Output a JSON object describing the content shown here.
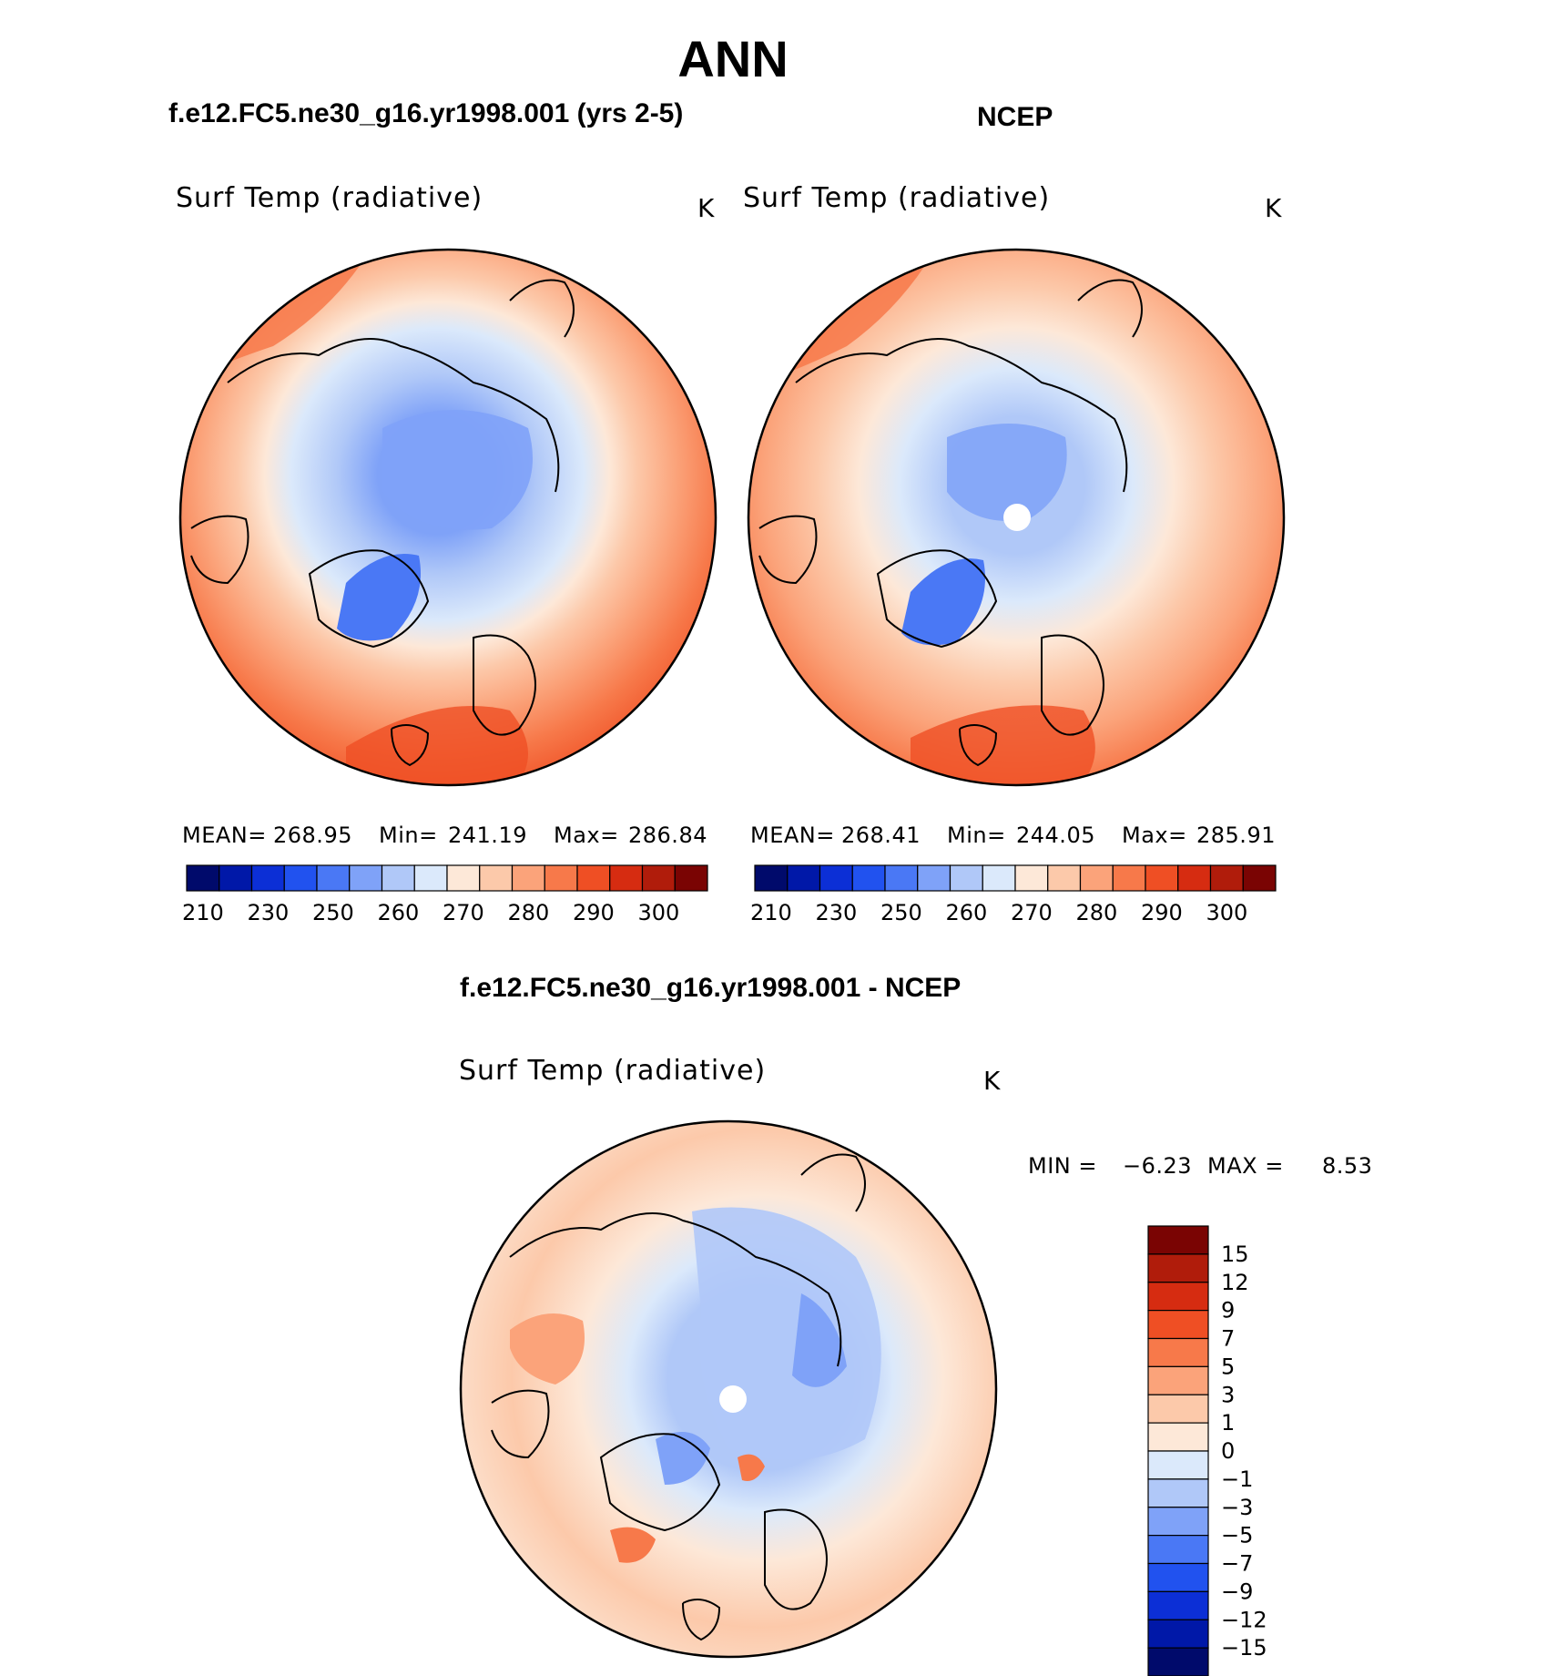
{
  "title": "ANN",
  "panels": {
    "left": {
      "case": "f.e12.FC5.ne30_g16.yr1998.001 (yrs 2-5)",
      "variable": "Surf Temp (radiative)",
      "units": "K",
      "mean_label": "MEAN=",
      "mean": "268.95",
      "min_label": "Min=",
      "min": "241.19",
      "max_label": "Max=",
      "max": "286.84"
    },
    "right": {
      "case": "NCEP",
      "variable": "Surf Temp (radiative)",
      "units": "K",
      "mean_label": "MEAN=",
      "mean": "268.41",
      "min_label": "Min=",
      "min": "244.05",
      "max_label": "Max=",
      "max": "285.91"
    },
    "diff": {
      "case": "f.e12.FC5.ne30_g16.yr1998.001 - NCEP",
      "variable": "Surf Temp (radiative)",
      "units": "K",
      "min_label": "MIN =",
      "min": "−6.23",
      "max_label": "MAX =",
      "max": "8.53"
    }
  },
  "chart_data": [
    {
      "type": "heatmap",
      "projection": "polar stereographic (north)",
      "title": "f.e12.FC5.ne30_g16.yr1998.001 (yrs 2-5)",
      "field": "Surf Temp (radiative)",
      "units": "K",
      "mean": 268.95,
      "min": 241.19,
      "max": 286.84,
      "contour_levels": [
        210,
        220,
        230,
        240,
        250,
        255,
        260,
        265,
        270,
        275,
        280,
        285,
        290,
        295,
        300
      ],
      "colorbar_labels": [
        "210",
        "230",
        "250",
        "260",
        "270",
        "280",
        "290",
        "300"
      ]
    },
    {
      "type": "heatmap",
      "projection": "polar stereographic (north)",
      "title": "NCEP",
      "field": "Surf Temp (radiative)",
      "units": "K",
      "mean": 268.41,
      "min": 244.05,
      "max": 285.91,
      "contour_levels": [
        210,
        220,
        230,
        240,
        250,
        255,
        260,
        265,
        270,
        275,
        280,
        285,
        290,
        295,
        300
      ],
      "colorbar_labels": [
        "210",
        "230",
        "250",
        "260",
        "270",
        "280",
        "290",
        "300"
      ]
    },
    {
      "type": "heatmap",
      "projection": "polar stereographic (north)",
      "title": "f.e12.FC5.ne30_g16.yr1998.001 - NCEP",
      "field": "Surf Temp (radiative)",
      "units": "K",
      "min": -6.23,
      "max": 8.53,
      "contour_levels": [
        -15,
        -12,
        -9,
        -7,
        -5,
        -3,
        -1,
        0,
        1,
        3,
        5,
        7,
        9,
        12,
        15
      ],
      "colorbar_labels": [
        "15",
        "12",
        "9",
        "7",
        "5",
        "3",
        "1",
        "0",
        "−1",
        "−3",
        "−5",
        "−7",
        "−9",
        "−12",
        "−15"
      ]
    }
  ],
  "colors": {
    "abs_colormap": [
      "#000a6b",
      "#0018a8",
      "#0c2fd6",
      "#2152ef",
      "#4a78f5",
      "#7fa2f8",
      "#b0c8f8",
      "#dbe9fb",
      "#fde8d8",
      "#fcc9aa",
      "#fba37a",
      "#f7794a",
      "#ef4f24",
      "#d62c11",
      "#b01c0b",
      "#7a0403"
    ],
    "diff_colormap": [
      "#000a6b",
      "#0018a8",
      "#0c2fd6",
      "#2152ef",
      "#4a78f5",
      "#7fa2f8",
      "#b0c8f8",
      "#dbe9fb",
      "#fde8d8",
      "#fcc9aa",
      "#fba37a",
      "#f7794a",
      "#ef4f24",
      "#d62c11",
      "#b01c0b",
      "#7a0403"
    ]
  }
}
